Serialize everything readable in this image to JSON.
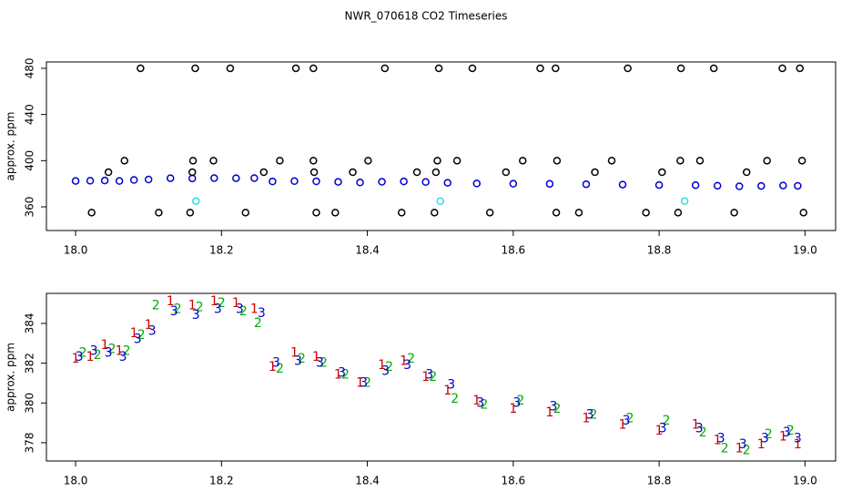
{
  "chart_data": [
    {
      "type": "scatter",
      "title": "NWR_070618  CO2 Timeseries",
      "ylabel": "approx. ppm",
      "xlim": [
        17.96,
        19.042
      ],
      "ylim": [
        339.5,
        485.5
      ],
      "xticks": [
        {
          "value": 18,
          "label": "18.0"
        },
        18.2,
        18.4,
        18.6,
        18.8,
        {
          "value": 19,
          "label": "19.0"
        }
      ],
      "yticks": [
        360,
        400,
        440,
        480
      ],
      "series": [
        {
          "color": "#0000cc",
          "marker": "circle",
          "x": [
            18.0,
            18.02,
            18.04,
            18.06,
            18.08,
            18.1,
            18.13,
            18.16,
            18.19,
            18.22,
            18.245,
            18.27,
            18.3,
            18.33,
            18.36,
            18.39,
            18.42,
            18.45,
            18.48,
            18.51,
            18.55,
            18.6,
            18.65,
            18.7,
            18.75,
            18.8,
            18.85,
            18.88,
            18.91,
            18.94,
            18.97,
            18.99
          ],
          "values": [
            382.4,
            382.6,
            382.8,
            382.4,
            383.3,
            383.7,
            384.8,
            384.6,
            384.9,
            384.8,
            384.9,
            382.0,
            382.3,
            382.1,
            381.6,
            381.1,
            381.7,
            382.0,
            381.5,
            380.8,
            380.2,
            380.0,
            379.9,
            379.6,
            379.3,
            378.9,
            378.8,
            378.3,
            377.8,
            378.1,
            378.5,
            378.2
          ]
        },
        {
          "color": "#000000",
          "marker": "circle",
          "x": [
            18.089,
            18.164,
            18.212,
            18.302,
            18.326,
            18.424,
            18.498,
            18.544,
            18.637,
            18.658,
            18.757,
            18.83,
            18.875,
            18.969,
            18.993,
            18.067,
            18.161,
            18.189,
            18.28,
            18.326,
            18.401,
            18.496,
            18.523,
            18.613,
            18.66,
            18.735,
            18.829,
            18.856,
            18.948,
            18.996,
            18.045,
            18.16,
            18.258,
            18.327,
            18.38,
            18.468,
            18.494,
            18.59,
            18.712,
            18.804,
            18.92,
            18.022,
            18.114,
            18.157,
            18.233,
            18.33,
            18.356,
            18.447,
            18.492,
            18.568,
            18.659,
            18.69,
            18.782,
            18.826,
            18.903,
            18.998
          ],
          "values": [
            480,
            480,
            480,
            480,
            480,
            480,
            480,
            480,
            480,
            480,
            480,
            480,
            480,
            480,
            480,
            400,
            400,
            400,
            400,
            400,
            400,
            400,
            400,
            400,
            400,
            400,
            400,
            400,
            400,
            400,
            390,
            390,
            390,
            390,
            390,
            390,
            390,
            390,
            390,
            390,
            390,
            355,
            355,
            355,
            355,
            355,
            355,
            355,
            355,
            355,
            355,
            355,
            355,
            355,
            355,
            355
          ]
        },
        {
          "color": "#33dddd",
          "marker": "circle",
          "x": [
            18.165,
            18.5,
            18.835
          ],
          "values": [
            365,
            365,
            365
          ]
        }
      ]
    },
    {
      "type": "scatter",
      "ylabel": "approx. ppm",
      "xlim": [
        17.96,
        19.042
      ],
      "ylim": [
        377.08,
        385.51
      ],
      "xticks": [
        {
          "value": 18,
          "label": "18.0"
        },
        18.2,
        18.4,
        18.6,
        18.8,
        {
          "value": 19,
          "label": "19.0"
        }
      ],
      "yticks": [
        378,
        380,
        382,
        384
      ],
      "series": [
        {
          "name": "1",
          "color": "#cc0000",
          "marker": "text",
          "x": [
            18.0,
            18.02,
            18.04,
            18.06,
            18.08,
            18.1,
            18.13,
            18.16,
            18.19,
            18.22,
            18.245,
            18.27,
            18.3,
            18.33,
            18.36,
            18.39,
            18.42,
            18.45,
            18.48,
            18.51,
            18.55,
            18.6,
            18.65,
            18.7,
            18.75,
            18.8,
            18.85,
            18.88,
            18.91,
            18.94,
            18.97,
            18.99
          ],
          "values": [
            382.2,
            382.3,
            382.9,
            382.6,
            383.5,
            383.9,
            385.1,
            384.9,
            385.1,
            385.0,
            384.7,
            381.8,
            382.5,
            382.3,
            381.4,
            381.0,
            381.9,
            382.1,
            381.3,
            380.6,
            380.1,
            379.7,
            379.5,
            379.2,
            378.9,
            378.6,
            378.9,
            378.1,
            377.7,
            377.9,
            378.3,
            377.9
          ]
        },
        {
          "name": "2",
          "color": "#00aa00",
          "marker": "text",
          "x": [
            18.01,
            18.03,
            18.05,
            18.07,
            18.09,
            18.11,
            18.14,
            18.17,
            18.2,
            18.23,
            18.25,
            18.28,
            18.31,
            18.34,
            18.37,
            18.4,
            18.43,
            18.46,
            18.49,
            18.52,
            18.56,
            18.61,
            18.66,
            18.71,
            18.76,
            18.81,
            18.86,
            18.89,
            18.92,
            18.95,
            18.98
          ],
          "values": [
            382.5,
            382.4,
            382.7,
            382.6,
            383.4,
            384.9,
            384.7,
            384.8,
            385.0,
            384.6,
            384.0,
            381.7,
            382.2,
            382.0,
            381.4,
            381.0,
            381.8,
            382.2,
            381.3,
            380.2,
            379.9,
            380.1,
            379.7,
            379.4,
            379.2,
            379.1,
            378.5,
            377.7,
            377.6,
            378.4,
            378.6
          ]
        },
        {
          "name": "3",
          "color": "#0000cc",
          "marker": "text",
          "x": [
            18.005,
            18.025,
            18.045,
            18.065,
            18.085,
            18.105,
            18.135,
            18.165,
            18.195,
            18.225,
            18.255,
            18.275,
            18.305,
            18.335,
            18.365,
            18.395,
            18.425,
            18.455,
            18.485,
            18.515,
            18.555,
            18.605,
            18.655,
            18.705,
            18.755,
            18.805,
            18.855,
            18.885,
            18.915,
            18.945,
            18.975,
            18.99
          ],
          "values": [
            382.3,
            382.6,
            382.5,
            382.3,
            383.2,
            383.6,
            384.6,
            384.4,
            384.7,
            384.7,
            384.5,
            382.0,
            382.1,
            382.0,
            381.5,
            381.0,
            381.6,
            381.9,
            381.4,
            380.9,
            380.0,
            380.0,
            379.8,
            379.4,
            379.1,
            378.7,
            378.7,
            378.2,
            377.9,
            378.2,
            378.5,
            378.2
          ]
        }
      ]
    }
  ]
}
